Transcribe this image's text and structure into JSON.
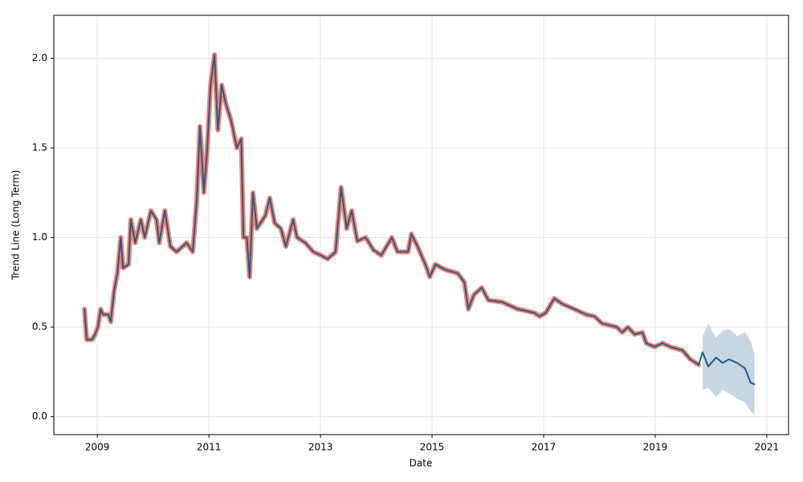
{
  "chart_data": {
    "type": "line",
    "x_label": "Date",
    "y_label": "Trend Line (Long Term)",
    "xlim": [
      2008.22,
      2021.39
    ],
    "ylim": [
      -0.1,
      2.24
    ],
    "xticks": [
      2009,
      2011,
      2013,
      2015,
      2017,
      2019,
      2021
    ],
    "yticks": [
      {
        "value": 0,
        "label": "0.0"
      },
      0.5,
      {
        "value": 1,
        "label": "1.0"
      },
      1.5,
      {
        "value": 2,
        "label": "2.0"
      }
    ],
    "grid": true,
    "x": [
      2008.77,
      2008.81,
      2008.91,
      2008.96,
      2009.01,
      2009.06,
      2009.1,
      2009.2,
      2009.24,
      2009.3,
      2009.36,
      2009.42,
      2009.46,
      2009.56,
      2009.6,
      2009.68,
      2009.78,
      2009.85,
      2009.96,
      2010.06,
      2010.11,
      2010.21,
      2010.31,
      2010.42,
      2010.6,
      2010.71,
      2010.78,
      2010.84,
      2010.91,
      2010.97,
      2011.03,
      2011.1,
      2011.16,
      2011.23,
      2011.3,
      2011.4,
      2011.5,
      2011.58,
      2011.62,
      2011.68,
      2011.73,
      2011.79,
      2011.86,
      2012.01,
      2012.09,
      2012.18,
      2012.29,
      2012.38,
      2012.51,
      2012.58,
      2012.73,
      2012.87,
      2013.01,
      2013.13,
      2013.27,
      2013.37,
      2013.47,
      2013.56,
      2013.66,
      2013.81,
      2013.95,
      2014.09,
      2014.28,
      2014.38,
      2014.57,
      2014.63,
      2014.74,
      2014.88,
      2014.96,
      2015.06,
      2015.24,
      2015.46,
      2015.58,
      2015.65,
      2015.75,
      2015.89,
      2016.01,
      2016.25,
      2016.54,
      2016.83,
      2016.93,
      2017.04,
      2017.19,
      2017.33,
      2017.55,
      2017.76,
      2017.91,
      2018.05,
      2018.31,
      2018.41,
      2018.51,
      2018.63,
      2018.77,
      2018.84,
      2018.99,
      2019.13,
      2019.27,
      2019.49,
      2019.63,
      2019.78,
      2019.85,
      2019.95,
      2020.09,
      2020.21,
      2020.32,
      2020.47,
      2020.61,
      2020.71,
      2020.78
    ],
    "series": [
      {
        "color": "#1f5f86",
        "highlight_color": "#fa8072",
        "values": [
          0.6,
          0.43,
          0.43,
          0.46,
          0.5,
          0.6,
          0.57,
          0.57,
          0.53,
          0.7,
          0.8,
          1.0,
          0.83,
          0.85,
          1.1,
          0.97,
          1.1,
          1.0,
          1.15,
          1.1,
          0.97,
          1.15,
          0.95,
          0.92,
          0.97,
          0.92,
          1.2,
          1.62,
          1.25,
          1.5,
          1.85,
          2.02,
          1.6,
          1.85,
          1.75,
          1.65,
          1.5,
          1.55,
          1.0,
          1.0,
          0.78,
          1.25,
          1.05,
          1.12,
          1.22,
          1.08,
          1.05,
          0.95,
          1.1,
          1.0,
          0.97,
          0.92,
          0.9,
          0.88,
          0.92,
          1.28,
          1.05,
          1.15,
          0.98,
          1.0,
          0.93,
          0.9,
          1.0,
          0.92,
          0.92,
          1.02,
          0.95,
          0.85,
          0.78,
          0.85,
          0.82,
          0.8,
          0.75,
          0.6,
          0.68,
          0.72,
          0.65,
          0.64,
          0.6,
          0.58,
          0.56,
          0.58,
          0.66,
          0.63,
          0.6,
          0.57,
          0.56,
          0.52,
          0.5,
          0.47,
          0.5,
          0.46,
          0.47,
          0.41,
          0.39,
          0.41,
          0.39,
          0.37,
          0.32,
          0.29,
          0.36,
          0.28,
          0.33,
          0.3,
          0.32,
          0.3,
          0.27,
          0.19,
          0.18
        ]
      }
    ],
    "band": {
      "color": "#c8d6e3",
      "lower": [
        null,
        null,
        null,
        null,
        null,
        null,
        null,
        null,
        null,
        null,
        null,
        null,
        null,
        null,
        null,
        null,
        null,
        null,
        null,
        null,
        null,
        null,
        null,
        null,
        null,
        null,
        null,
        null,
        null,
        null,
        null,
        null,
        null,
        null,
        null,
        null,
        null,
        null,
        null,
        null,
        null,
        null,
        null,
        null,
        null,
        null,
        null,
        null,
        null,
        null,
        null,
        null,
        null,
        null,
        null,
        null,
        null,
        null,
        null,
        null,
        null,
        null,
        null,
        null,
        null,
        null,
        null,
        null,
        null,
        null,
        null,
        null,
        null,
        null,
        null,
        null,
        null,
        null,
        null,
        null,
        null,
        null,
        null,
        null,
        null,
        null,
        null,
        null,
        null,
        null,
        null,
        null,
        null,
        null,
        null,
        null,
        null,
        null,
        null,
        null,
        0.15,
        0.16,
        0.11,
        0.15,
        0.13,
        0.1,
        0.08,
        0.03,
        0.01
      ],
      "upper": [
        null,
        null,
        null,
        null,
        null,
        null,
        null,
        null,
        null,
        null,
        null,
        null,
        null,
        null,
        null,
        null,
        null,
        null,
        null,
        null,
        null,
        null,
        null,
        null,
        null,
        null,
        null,
        null,
        null,
        null,
        null,
        null,
        null,
        null,
        null,
        null,
        null,
        null,
        null,
        null,
        null,
        null,
        null,
        null,
        null,
        null,
        null,
        null,
        null,
        null,
        null,
        null,
        null,
        null,
        null,
        null,
        null,
        null,
        null,
        null,
        null,
        null,
        null,
        null,
        null,
        null,
        null,
        null,
        null,
        null,
        null,
        null,
        null,
        null,
        null,
        null,
        null,
        null,
        null,
        null,
        null,
        null,
        null,
        null,
        null,
        null,
        null,
        null,
        null,
        null,
        null,
        null,
        null,
        null,
        null,
        null,
        null,
        null,
        null,
        null,
        0.45,
        0.52,
        0.44,
        0.48,
        0.49,
        0.45,
        0.47,
        0.42,
        0.35
      ]
    }
  }
}
